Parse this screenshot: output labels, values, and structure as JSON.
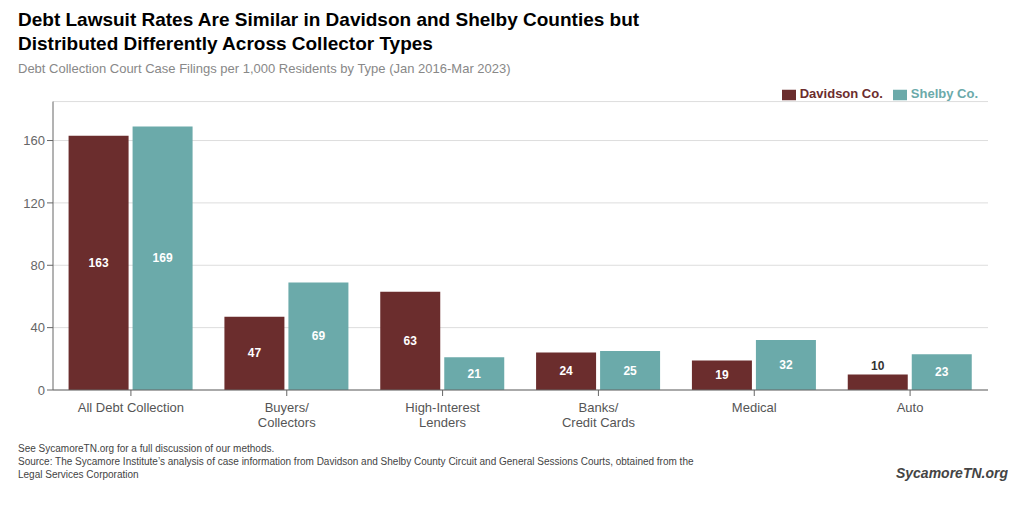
{
  "chart_data": {
    "type": "bar",
    "title": "Debt Lawsuit Rates Are Similar in Davidson and Shelby Counties but\nDistributed Differently Across Collector Types",
    "subtitle": "Debt Collection Court Case Filings per 1,000 Residents by Type (Jan 2016-Mar 2023)",
    "categories": [
      "All Debt Collection",
      "Buyers/\nCollectors",
      "High-Interest\nLenders",
      "Banks/\nCredit Cards",
      "Medical",
      "Auto"
    ],
    "series": [
      {
        "name": "Davidson Co.",
        "color": "#6B2D2D",
        "values": [
          163,
          47,
          63,
          24,
          19,
          10
        ]
      },
      {
        "name": "Shelby Co.",
        "color": "#6BAAAA",
        "values": [
          169,
          69,
          21,
          25,
          32,
          23
        ]
      }
    ],
    "ylim": [
      0,
      185
    ],
    "yticks": [
      0,
      40,
      80,
      120,
      160
    ],
    "grid": true,
    "legend": "upper right",
    "data_labels": true,
    "footnotes": [
      "See SycamoreTN.org for a full discussion of our methods.",
      "Source: The Sycamore Institute’s analysis of case information from Davidson and Shelby County Circuit and General Sessions Courts, obtained from the",
      "Legal Services Corporation"
    ],
    "watermark": "SycamoreTN.org"
  }
}
